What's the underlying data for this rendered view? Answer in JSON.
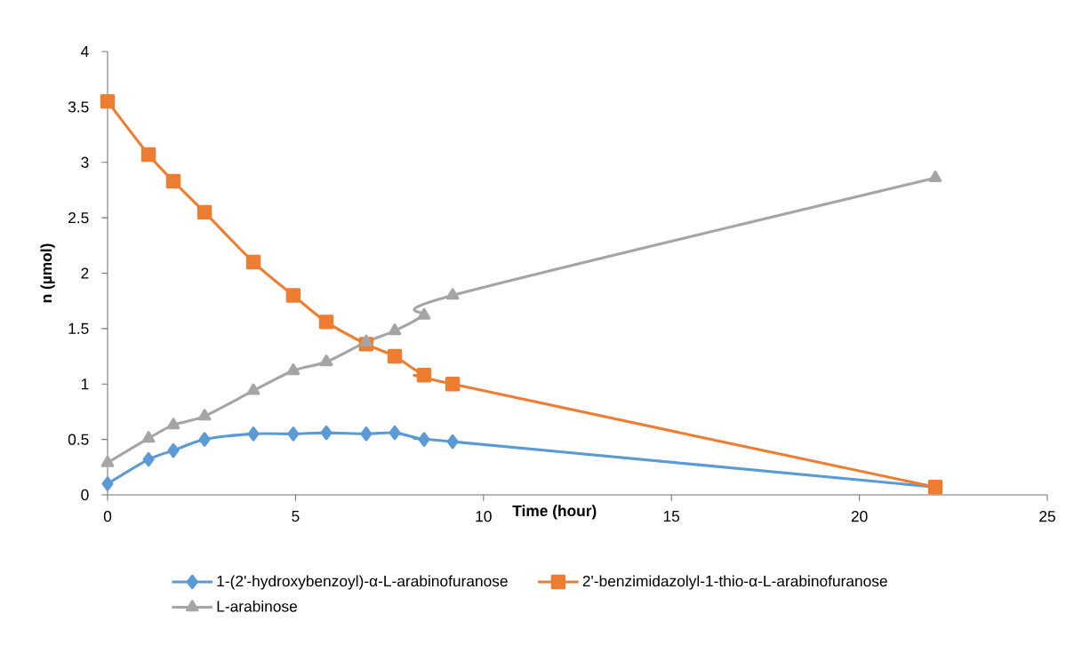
{
  "chart_data": {
    "type": "line",
    "xlabel": "Time (hour)",
    "ylabel": "n (µmol)",
    "x": [
      0,
      1.09,
      1.75,
      2.58,
      3.88,
      4.94,
      5.82,
      6.88,
      7.64,
      8.42,
      9.18,
      22.02
    ],
    "series": [
      {
        "name": "1-(2'-hydroxybenzoyl)-α-L-arabinofuranose",
        "color": "#5b9bd5",
        "marker": "diamond",
        "values": [
          0.1,
          0.32,
          0.4,
          0.5,
          0.55,
          0.55,
          0.56,
          0.55,
          0.56,
          0.5,
          0.48,
          0.07
        ]
      },
      {
        "name": "2'-benzimidazolyl-1-thio-α-L-arabinofuranose",
        "color": "#ed7d31",
        "marker": "square",
        "values": [
          3.55,
          3.07,
          2.83,
          2.55,
          2.1,
          1.8,
          1.56,
          1.36,
          1.25,
          1.08,
          1.0,
          0.07
        ]
      },
      {
        "name": "L-arabinose",
        "color": "#a5a5a5",
        "marker": "triangle",
        "values": [
          0.29,
          0.51,
          0.63,
          0.71,
          0.94,
          1.12,
          1.2,
          1.38,
          1.48,
          1.62,
          1.8,
          2.86
        ]
      }
    ],
    "xlim": [
      0,
      25
    ],
    "xticks": [
      0,
      5,
      10,
      15,
      20,
      25
    ],
    "ylim": [
      0,
      4
    ],
    "yticks": [
      0,
      0.5,
      1,
      1.5,
      2,
      2.5,
      3,
      3.5,
      4
    ],
    "grid": false,
    "legend": "bottom",
    "line_style": "solid"
  }
}
